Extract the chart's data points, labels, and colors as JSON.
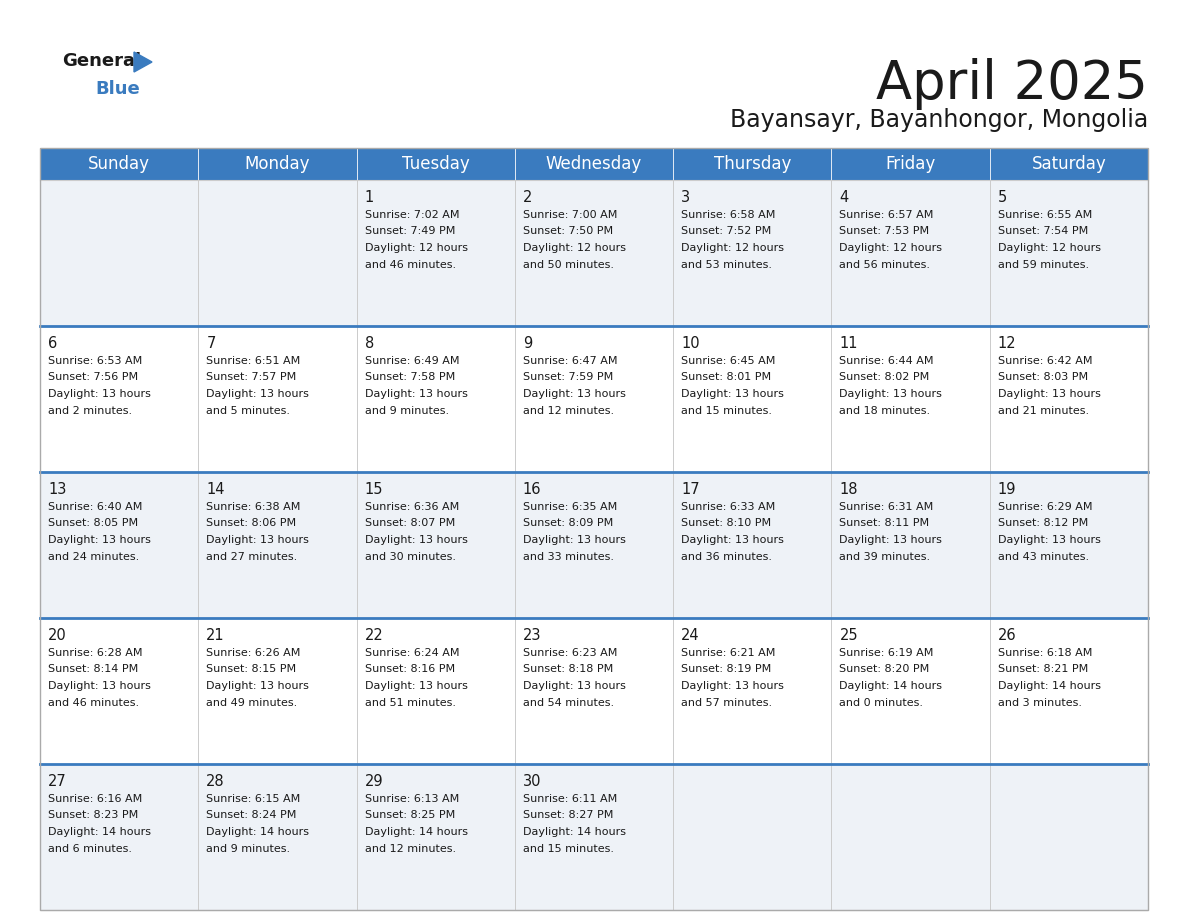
{
  "title": "April 2025",
  "subtitle": "Bayansayr, Bayanhongor, Mongolia",
  "header_bg_color": "#3a7bbf",
  "header_text_color": "#ffffff",
  "row_bg_colors": [
    "#eef2f7",
    "#ffffff"
  ],
  "text_color": "#1a1a1a",
  "separator_color": "#3a7bbf",
  "grid_color": "#cccccc",
  "bg_color": "#ffffff",
  "days_of_week": [
    "Sunday",
    "Monday",
    "Tuesday",
    "Wednesday",
    "Thursday",
    "Friday",
    "Saturday"
  ],
  "day_data": {
    "1": {
      "sunrise": "7:02 AM",
      "sunset": "7:49 PM",
      "daylight": "12 hours",
      "daylight2": "and 46 minutes."
    },
    "2": {
      "sunrise": "7:00 AM",
      "sunset": "7:50 PM",
      "daylight": "12 hours",
      "daylight2": "and 50 minutes."
    },
    "3": {
      "sunrise": "6:58 AM",
      "sunset": "7:52 PM",
      "daylight": "12 hours",
      "daylight2": "and 53 minutes."
    },
    "4": {
      "sunrise": "6:57 AM",
      "sunset": "7:53 PM",
      "daylight": "12 hours",
      "daylight2": "and 56 minutes."
    },
    "5": {
      "sunrise": "6:55 AM",
      "sunset": "7:54 PM",
      "daylight": "12 hours",
      "daylight2": "and 59 minutes."
    },
    "6": {
      "sunrise": "6:53 AM",
      "sunset": "7:56 PM",
      "daylight": "13 hours",
      "daylight2": "and 2 minutes."
    },
    "7": {
      "sunrise": "6:51 AM",
      "sunset": "7:57 PM",
      "daylight": "13 hours",
      "daylight2": "and 5 minutes."
    },
    "8": {
      "sunrise": "6:49 AM",
      "sunset": "7:58 PM",
      "daylight": "13 hours",
      "daylight2": "and 9 minutes."
    },
    "9": {
      "sunrise": "6:47 AM",
      "sunset": "7:59 PM",
      "daylight": "13 hours",
      "daylight2": "and 12 minutes."
    },
    "10": {
      "sunrise": "6:45 AM",
      "sunset": "8:01 PM",
      "daylight": "13 hours",
      "daylight2": "and 15 minutes."
    },
    "11": {
      "sunrise": "6:44 AM",
      "sunset": "8:02 PM",
      "daylight": "13 hours",
      "daylight2": "and 18 minutes."
    },
    "12": {
      "sunrise": "6:42 AM",
      "sunset": "8:03 PM",
      "daylight": "13 hours",
      "daylight2": "and 21 minutes."
    },
    "13": {
      "sunrise": "6:40 AM",
      "sunset": "8:05 PM",
      "daylight": "13 hours",
      "daylight2": "and 24 minutes."
    },
    "14": {
      "sunrise": "6:38 AM",
      "sunset": "8:06 PM",
      "daylight": "13 hours",
      "daylight2": "and 27 minutes."
    },
    "15": {
      "sunrise": "6:36 AM",
      "sunset": "8:07 PM",
      "daylight": "13 hours",
      "daylight2": "and 30 minutes."
    },
    "16": {
      "sunrise": "6:35 AM",
      "sunset": "8:09 PM",
      "daylight": "13 hours",
      "daylight2": "and 33 minutes."
    },
    "17": {
      "sunrise": "6:33 AM",
      "sunset": "8:10 PM",
      "daylight": "13 hours",
      "daylight2": "and 36 minutes."
    },
    "18": {
      "sunrise": "6:31 AM",
      "sunset": "8:11 PM",
      "daylight": "13 hours",
      "daylight2": "and 39 minutes."
    },
    "19": {
      "sunrise": "6:29 AM",
      "sunset": "8:12 PM",
      "daylight": "13 hours",
      "daylight2": "and 43 minutes."
    },
    "20": {
      "sunrise": "6:28 AM",
      "sunset": "8:14 PM",
      "daylight": "13 hours",
      "daylight2": "and 46 minutes."
    },
    "21": {
      "sunrise": "6:26 AM",
      "sunset": "8:15 PM",
      "daylight": "13 hours",
      "daylight2": "and 49 minutes."
    },
    "22": {
      "sunrise": "6:24 AM",
      "sunset": "8:16 PM",
      "daylight": "13 hours",
      "daylight2": "and 51 minutes."
    },
    "23": {
      "sunrise": "6:23 AM",
      "sunset": "8:18 PM",
      "daylight": "13 hours",
      "daylight2": "and 54 minutes."
    },
    "24": {
      "sunrise": "6:21 AM",
      "sunset": "8:19 PM",
      "daylight": "13 hours",
      "daylight2": "and 57 minutes."
    },
    "25": {
      "sunrise": "6:19 AM",
      "sunset": "8:20 PM",
      "daylight": "14 hours",
      "daylight2": "and 0 minutes."
    },
    "26": {
      "sunrise": "6:18 AM",
      "sunset": "8:21 PM",
      "daylight": "14 hours",
      "daylight2": "and 3 minutes."
    },
    "27": {
      "sunrise": "6:16 AM",
      "sunset": "8:23 PM",
      "daylight": "14 hours",
      "daylight2": "and 6 minutes."
    },
    "28": {
      "sunrise": "6:15 AM",
      "sunset": "8:24 PM",
      "daylight": "14 hours",
      "daylight2": "and 9 minutes."
    },
    "29": {
      "sunrise": "6:13 AM",
      "sunset": "8:25 PM",
      "daylight": "14 hours",
      "daylight2": "and 12 minutes."
    },
    "30": {
      "sunrise": "6:11 AM",
      "sunset": "8:27 PM",
      "daylight": "14 hours",
      "daylight2": "and 15 minutes."
    }
  },
  "week_rows": [
    [
      0,
      0,
      1,
      2,
      3,
      4,
      5
    ],
    [
      6,
      7,
      8,
      9,
      10,
      11,
      12
    ],
    [
      13,
      14,
      15,
      16,
      17,
      18,
      19
    ],
    [
      20,
      21,
      22,
      23,
      24,
      25,
      26
    ],
    [
      27,
      28,
      29,
      30,
      0,
      0,
      0
    ]
  ],
  "title_fontsize": 38,
  "subtitle_fontsize": 17,
  "header_fontsize": 12,
  "day_num_fontsize": 10.5,
  "cell_text_fontsize": 8.0,
  "logo_triangle_color": "#3a7bbf"
}
